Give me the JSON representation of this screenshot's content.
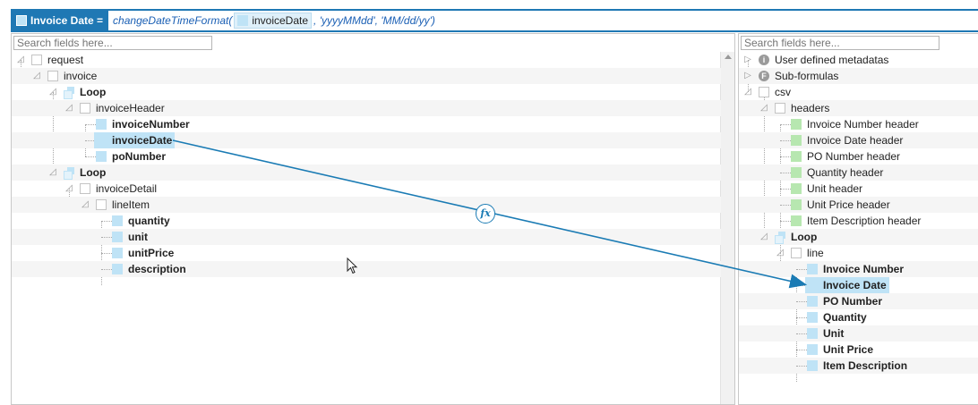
{
  "formula": {
    "target_label": "Invoice Date =",
    "function_name": "changeDateTimeFormat(",
    "token": "invoiceDate",
    "args_rest": ", 'yyyyMMdd', 'MM/dd/yy')"
  },
  "left_panel": {
    "search_placeholder": "Search fields here...",
    "nodes": {
      "request": "request",
      "invoice": "invoice",
      "loop1": "Loop",
      "invoiceHeader": "invoiceHeader",
      "invoiceNumber": "invoiceNumber",
      "invoiceDate": "invoiceDate",
      "poNumber": "poNumber",
      "loop2": "Loop",
      "invoiceDetail": "invoiceDetail",
      "lineItem": "lineItem",
      "quantity": "quantity",
      "unit": "unit",
      "unitPrice": "unitPrice",
      "description": "description"
    }
  },
  "right_panel": {
    "search_placeholder": "Search fields here...",
    "nodes": {
      "udm": "User defined metadatas",
      "subformulas": "Sub-formulas",
      "csv": "csv",
      "headers": "headers",
      "h_invoice_number": "Invoice Number header",
      "h_invoice_date": "Invoice Date header",
      "h_po_number": "PO Number header",
      "h_quantity": "Quantity header",
      "h_unit": "Unit header",
      "h_unit_price": "Unit Price header",
      "h_item_desc": "Item Description header",
      "loop": "Loop",
      "line": "line",
      "invoice_number": "Invoice Number",
      "invoice_date": "Invoice Date",
      "po_number": "PO Number",
      "quantity": "Quantity",
      "unit": "Unit",
      "unit_price": "Unit Price",
      "item_description": "Item Description"
    }
  },
  "mapping": {
    "badge": "fx"
  },
  "colors": {
    "accent": "#1f78b4",
    "field": "#bfe3f6",
    "header_field": "#b7e7b0"
  }
}
